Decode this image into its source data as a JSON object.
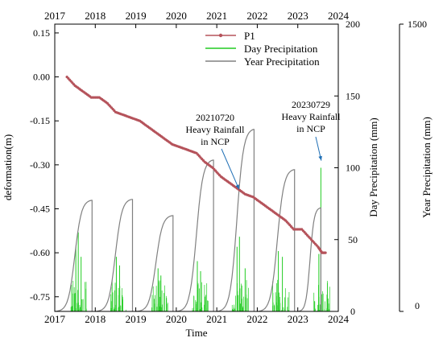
{
  "chart_data": {
    "type": "line",
    "xlabel": "Time",
    "x_ticks": [
      "2017",
      "2018",
      "2019",
      "2020",
      "2021",
      "2022",
      "2023",
      "2024"
    ],
    "x_top_ticks": [
      "2017",
      "2018",
      "2019",
      "2020",
      "2021",
      "2022",
      "2023",
      "2024"
    ],
    "xlim": [
      2017,
      2024
    ],
    "axes": {
      "deformation": {
        "label": "deformation(m)",
        "ticks": [
          "0.15",
          "0.00",
          "-0.15",
          "-0.30",
          "-0.45",
          "-0.60",
          "-0.75"
        ],
        "ylim": [
          -0.8,
          0.18
        ]
      },
      "day_precip": {
        "label": "Day Precipitation (mm)",
        "ticks": [
          "0",
          "50",
          "100",
          "150",
          "200"
        ],
        "ylim": [
          0,
          200
        ]
      },
      "year_precip": {
        "label": "Year Precipitation (mm)",
        "ticks": [
          "0",
          "1500"
        ],
        "ylim": [
          0,
          1500
        ]
      }
    },
    "legend_position": "top-right",
    "colors": {
      "p1": "#b5535b",
      "day": "#22cc22",
      "year": "#808080",
      "annotation": "#1f6fb5"
    },
    "series": [
      {
        "name": "P1",
        "axis": "deformation",
        "x": [
          2017.3,
          2017.5,
          2017.7,
          2017.9,
          2018.1,
          2018.3,
          2018.5,
          2018.7,
          2018.9,
          2019.1,
          2019.3,
          2019.5,
          2019.7,
          2019.9,
          2020.1,
          2020.3,
          2020.5,
          2020.7,
          2020.9,
          2021.1,
          2021.3,
          2021.5,
          2021.7,
          2021.9,
          2022.1,
          2022.3,
          2022.5,
          2022.7,
          2022.9,
          2023.1,
          2023.3,
          2023.5,
          2023.6,
          2023.7
        ],
        "y": [
          0.0,
          -0.03,
          -0.05,
          -0.07,
          -0.07,
          -0.09,
          -0.12,
          -0.13,
          -0.14,
          -0.15,
          -0.17,
          -0.19,
          -0.21,
          -0.23,
          -0.24,
          -0.25,
          -0.26,
          -0.29,
          -0.31,
          -0.34,
          -0.36,
          -0.38,
          -0.4,
          -0.41,
          -0.43,
          -0.45,
          -0.47,
          -0.49,
          -0.52,
          -0.52,
          -0.55,
          -0.58,
          -0.6,
          -0.6
        ]
      },
      {
        "name": "Day Precipitation",
        "axis": "day_precip",
        "peaks": [
          {
            "x": 2017.52,
            "y": 45
          },
          {
            "x": 2017.58,
            "y": 55
          },
          {
            "x": 2017.65,
            "y": 38
          },
          {
            "x": 2018.52,
            "y": 38
          },
          {
            "x": 2018.6,
            "y": 32
          },
          {
            "x": 2019.55,
            "y": 30
          },
          {
            "x": 2019.62,
            "y": 25
          },
          {
            "x": 2020.52,
            "y": 35
          },
          {
            "x": 2020.6,
            "y": 28
          },
          {
            "x": 2021.5,
            "y": 45
          },
          {
            "x": 2021.56,
            "y": 52
          },
          {
            "x": 2021.7,
            "y": 30
          },
          {
            "x": 2022.52,
            "y": 42
          },
          {
            "x": 2022.62,
            "y": 38
          },
          {
            "x": 2023.57,
            "y": 100
          },
          {
            "x": 2023.52,
            "y": 40
          }
        ]
      },
      {
        "name": "Year Precipitation",
        "axis": "year_precip",
        "years": [
          {
            "start": 2017,
            "end": 2017.9,
            "total": 580
          },
          {
            "start": 2018,
            "end": 2018.9,
            "total": 585
          },
          {
            "start": 2019,
            "end": 2019.9,
            "total": 500
          },
          {
            "start": 2020,
            "end": 2020.9,
            "total": 790
          },
          {
            "start": 2021,
            "end": 2021.9,
            "total": 950
          },
          {
            "start": 2022,
            "end": 2022.9,
            "total": 740
          },
          {
            "start": 2023,
            "end": 2023.55,
            "total": 540
          }
        ]
      }
    ],
    "annotations": [
      {
        "text": [
          "20210720",
          "Heavy Rainfall",
          "in NCP"
        ],
        "x": 2021.55,
        "axis": "day_precip",
        "y": 85
      },
      {
        "text": [
          "20230729",
          "Heavy Rainfall",
          "in NCP"
        ],
        "x": 2023.58,
        "axis": "day_precip",
        "y": 105
      }
    ]
  }
}
